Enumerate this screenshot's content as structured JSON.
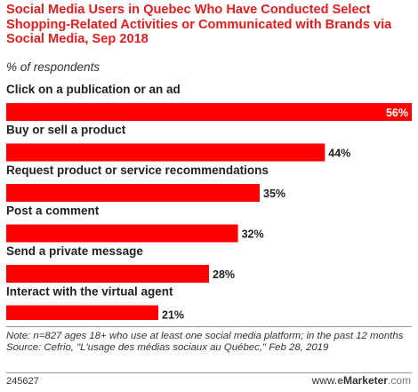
{
  "header": {
    "title": "Social Media Users in Quebec Who Have Conducted Select Shopping-Related Activities or Communicated with Brands via Social Media, Sep 2018",
    "subtitle": "% of respondents"
  },
  "chart_data": {
    "type": "bar",
    "orientation": "horizontal",
    "title": "Social Media Users in Quebec Who Have Conducted Select Shopping-Related Activities or Communicated with Brands via Social Media, Sep 2018",
    "subtitle": "% of respondents",
    "categories": [
      "Click on a publication or an ad",
      "Buy or sell a product",
      "Request product or service recommendations",
      "Post a comment",
      "Send a private message",
      "Interact with the virtual agent"
    ],
    "values": [
      56,
      44,
      35,
      32,
      28,
      21
    ],
    "value_labels": [
      "56%",
      "44%",
      "35%",
      "32%",
      "28%",
      "21%"
    ],
    "unit": "%",
    "xlim": [
      0,
      56
    ],
    "bar_color": "#ff0000",
    "grid": false,
    "legend": "none"
  },
  "footer": {
    "note": "Note: n=827 ages 18+ who use at least one social media platform; in the past 12 months",
    "source": "Source: Cefrio, \"L'usage des médias sociaux au Québec,\" Feb 28, 2019",
    "chart_id": "245627",
    "brand_www": "www.",
    "brand_e": "e",
    "brand_name": "Marketer",
    "brand_tld": ".com"
  }
}
